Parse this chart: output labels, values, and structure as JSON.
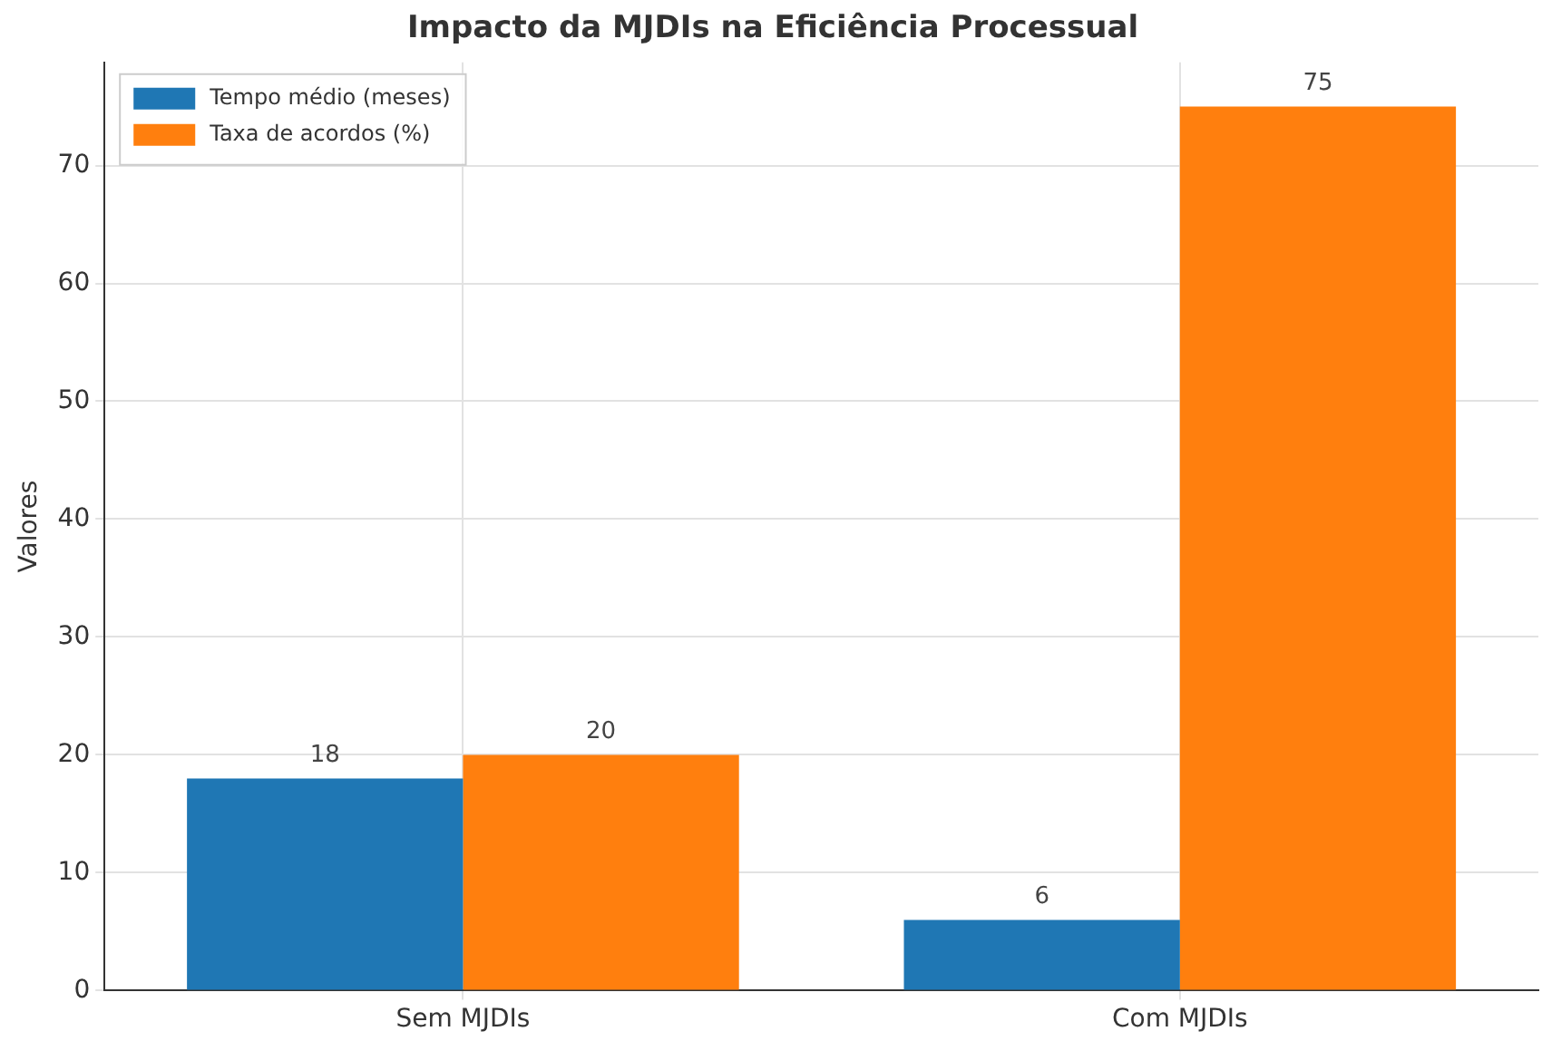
{
  "chart_data": {
    "type": "bar",
    "title": "Impacto da MJDIs na Eficiência Processual",
    "ylabel": "Valores",
    "categories": [
      "Sem MJDIs",
      "Com MJDIs"
    ],
    "series": [
      {
        "name": "Tempo médio (meses)",
        "color": "#1f77b4",
        "values": [
          18,
          6
        ]
      },
      {
        "name": "Taxa de acordos (%)",
        "color": "#ff7f0e",
        "values": [
          20,
          75
        ]
      }
    ],
    "ylim": [
      0,
      78.75
    ],
    "yticks": [
      0,
      10,
      20,
      30,
      40,
      50,
      60,
      70
    ],
    "grid": true,
    "legend": "top left",
    "data_labels": true
  }
}
